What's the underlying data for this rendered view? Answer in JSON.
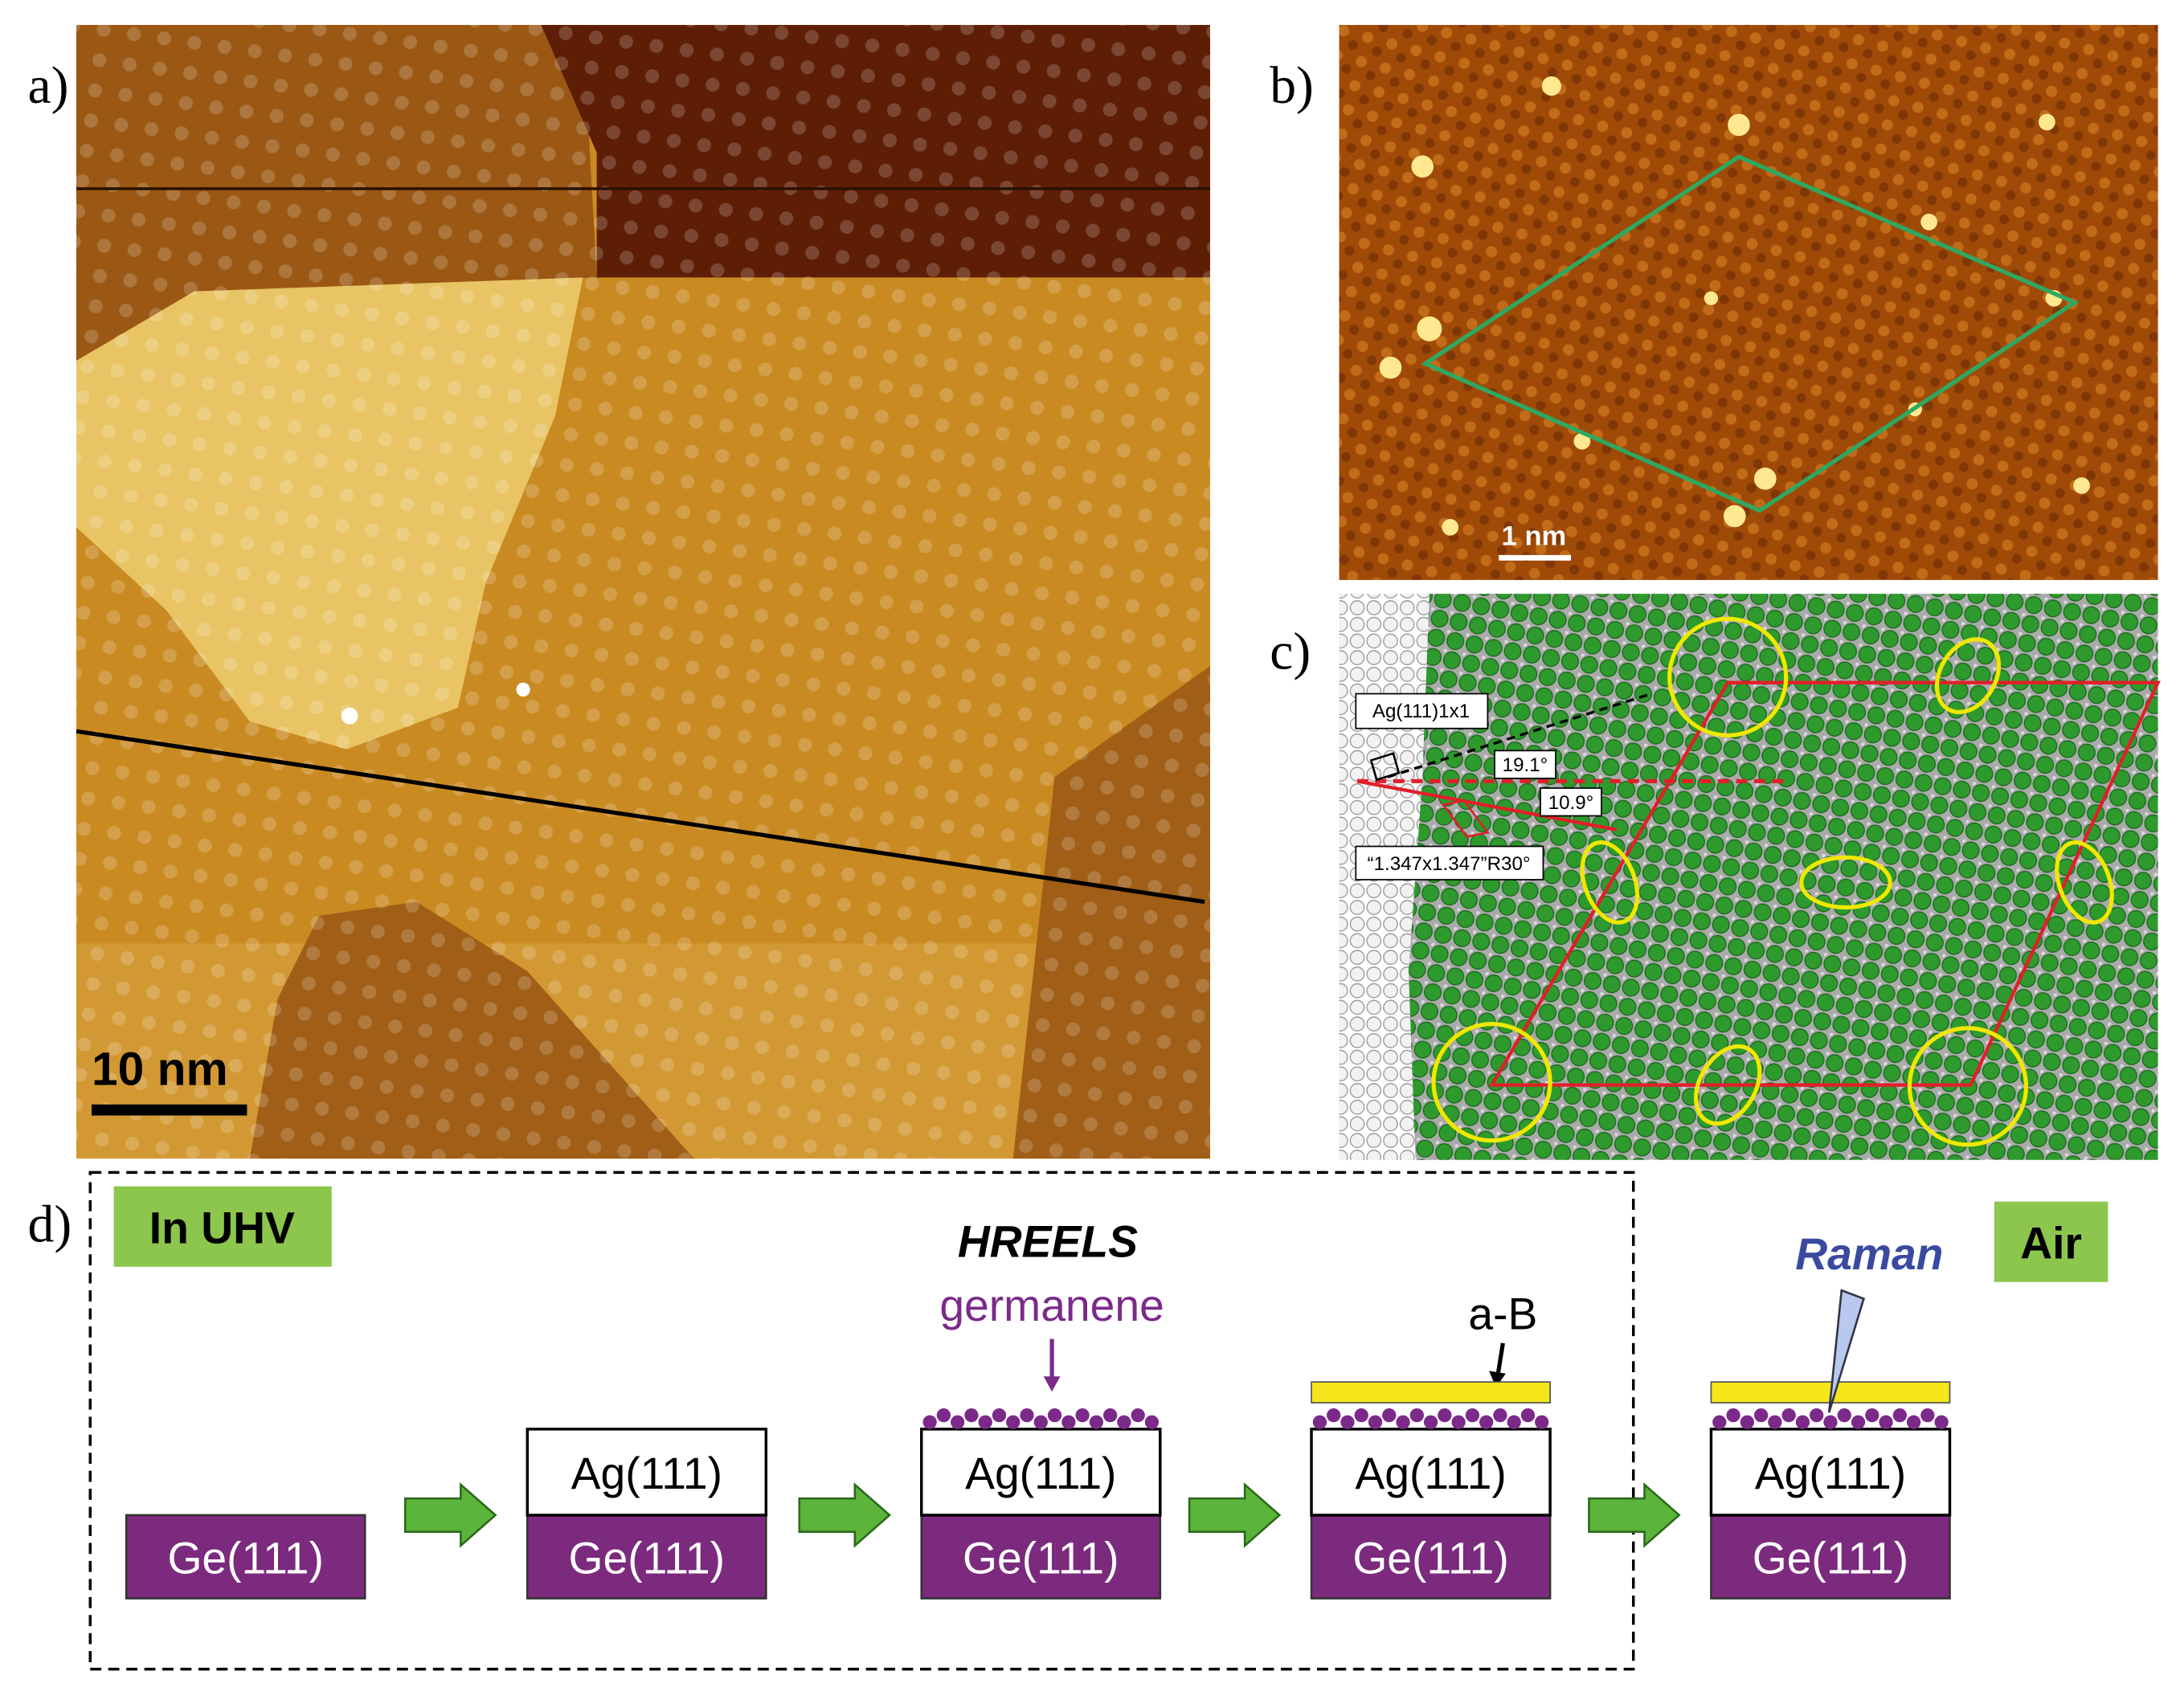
{
  "panels": {
    "a": {
      "label": "a)",
      "scale_bar": "10 nm"
    },
    "b": {
      "label": "b)",
      "scale_bar": "1 nm"
    },
    "c": {
      "label": "c)",
      "annotations": [
        "Ag(111)1x1",
        "19.1°",
        "10.9°",
        "“1.347x1.347”R30°"
      ]
    },
    "d": {
      "label": "d)",
      "in_uhv": "In UHV",
      "air": "Air",
      "hreels": "HREELS",
      "germanene": "germanene",
      "a_b": "a-B",
      "raman": "Raman",
      "steps": [
        {
          "substrate": "Ge(111)"
        },
        {
          "layer": "Ag(111)",
          "substrate": "Ge(111)"
        },
        {
          "layer": "Ag(111)",
          "substrate": "Ge(111)"
        },
        {
          "layer": "Ag(111)",
          "substrate": "Ge(111)"
        },
        {
          "layer": "Ag(111)",
          "substrate": "Ge(111)"
        }
      ]
    }
  }
}
